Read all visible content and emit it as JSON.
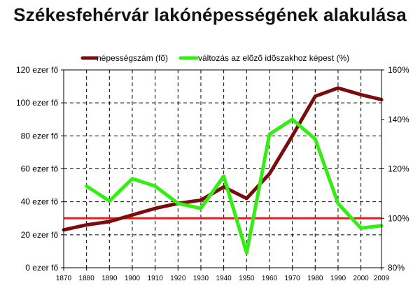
{
  "chart_data": {
    "type": "line",
    "title": "Székesfehérvár lakónépességének alakulása",
    "x": [
      1870,
      1880,
      1890,
      1900,
      1910,
      1920,
      1930,
      1940,
      1950,
      1960,
      1970,
      1980,
      1990,
      2000,
      2009
    ],
    "x_tick_labels": [
      "1870",
      "1880",
      "1890",
      "1900",
      "1910",
      "1920",
      "1930",
      "1940",
      "1950",
      "1960",
      "1970",
      "1980",
      "1990",
      "2000",
      "2009"
    ],
    "xlim": [
      1870,
      2009
    ],
    "y_left": {
      "lim": [
        0,
        120
      ],
      "ticks": [
        0,
        20,
        40,
        60,
        80,
        100,
        120
      ],
      "tick_labels": [
        "0 ezer fő",
        "20 ezer fő",
        "40 ezer fő",
        "60 ezer fő",
        "80 ezer fő",
        "100 ezer fő",
        "120 ezer fő"
      ]
    },
    "y_right": {
      "lim": [
        80,
        160
      ],
      "ticks": [
        80,
        100,
        120,
        140,
        160
      ],
      "tick_labels": [
        "80%",
        "100%",
        "120%",
        "140%",
        "160%"
      ]
    },
    "grid": true,
    "legend_position": "top",
    "series": [
      {
        "name": "népességszám (fõ)",
        "axis": "left",
        "color": "#7a0c0c",
        "x": [
          1870,
          1880,
          1890,
          1900,
          1910,
          1920,
          1930,
          1940,
          1950,
          1960,
          1970,
          1980,
          1990,
          2000,
          2009
        ],
        "values": [
          23,
          26,
          28,
          32,
          36,
          39,
          41,
          49,
          42,
          57,
          80,
          104,
          109,
          105,
          102
        ]
      },
      {
        "name": "változás az elõzõ idõszakhoz képest (%)",
        "axis": "right",
        "color": "#33ee11",
        "x": [
          1880,
          1890,
          1900,
          1910,
          1920,
          1930,
          1940,
          1950,
          1960,
          1970,
          1980,
          1990,
          2000,
          2009
        ],
        "values": [
          113,
          107,
          116,
          113,
          106,
          104,
          117,
          86,
          134,
          140,
          132,
          106,
          96,
          97
        ]
      }
    ],
    "reference_line": {
      "axis": "right",
      "value": 100,
      "color": "#ff1111"
    }
  }
}
